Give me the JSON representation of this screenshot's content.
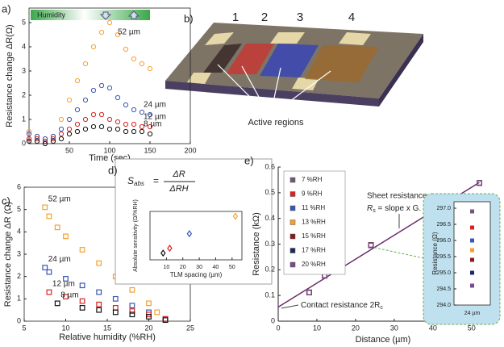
{
  "chart_data": [
    {
      "type": "scatter",
      "panel": "a)",
      "xlabel": "Time (sec)",
      "ylabel": "Resistance change ΔR(Ω)",
      "marker": "circle",
      "frame": true,
      "humidity_bar": "Humidity",
      "x": [
        0,
        10,
        20,
        30,
        40,
        50,
        60,
        70,
        80,
        90,
        100,
        110,
        120,
        130,
        140,
        150
      ],
      "series": [
        {
          "name": "52 µm",
          "color": "#f5a030",
          "values": [
            0.5,
            0.3,
            0.2,
            0.3,
            1.0,
            1.8,
            2.6,
            3.3,
            4.0,
            4.6,
            5.0,
            4.5,
            3.9,
            3.5,
            3.3,
            3.1
          ]
        },
        {
          "name": "24 µm",
          "color": "#3a56b0",
          "values": [
            0.4,
            0.3,
            0.2,
            0.3,
            0.6,
            1.0,
            1.4,
            1.8,
            2.2,
            2.4,
            2.3,
            1.9,
            1.6,
            1.4,
            1.3,
            1.2
          ]
        },
        {
          "name": "12 µm",
          "color": "#e02020",
          "values": [
            0.2,
            0.2,
            0.1,
            0.2,
            0.4,
            0.6,
            0.8,
            1.0,
            1.2,
            1.2,
            1.0,
            0.9,
            0.8,
            0.8,
            0.7,
            0.7
          ]
        },
        {
          "name": "8 µm",
          "color": "#111111",
          "values": [
            0.1,
            0.1,
            0.0,
            0.1,
            0.2,
            0.4,
            0.5,
            0.6,
            0.7,
            0.7,
            0.6,
            0.6,
            0.5,
            0.5,
            0.5,
            0.4
          ]
        }
      ],
      "xlim": [
        0,
        200
      ],
      "ylim": [
        0,
        5.6
      ],
      "xticks": [
        50,
        100,
        150,
        200
      ],
      "yticks": [
        0,
        1,
        2,
        3,
        4,
        5
      ]
    },
    {
      "type": "scatter",
      "panel": "c)",
      "xlabel": "Relative humidity (%RH)",
      "ylabel": "Resistance change ΔR (Ω)",
      "marker": "square",
      "frame": true,
      "series": [
        {
          "name": "52 µm",
          "color": "#f5a030",
          "x": [
            7.5,
            8,
            9,
            10,
            12,
            14,
            16,
            18,
            20,
            21,
            22
          ],
          "values": [
            5.1,
            4.7,
            4.2,
            3.8,
            3.2,
            2.6,
            2.0,
            1.4,
            0.8,
            0.4,
            0.1
          ]
        },
        {
          "name": "24 µm",
          "color": "#3a56b0",
          "x": [
            7.5,
            8,
            10,
            12,
            14,
            16,
            18,
            20,
            22
          ],
          "values": [
            2.4,
            2.2,
            1.9,
            1.6,
            1.3,
            1.0,
            0.7,
            0.4,
            0.1
          ]
        },
        {
          "name": "12 µm",
          "color": "#e02020",
          "x": [
            8,
            10,
            12,
            14,
            16,
            18,
            20,
            22
          ],
          "values": [
            1.3,
            1.1,
            0.9,
            0.75,
            0.6,
            0.45,
            0.3,
            0.1
          ]
        },
        {
          "name": "8 µm",
          "color": "#111111",
          "x": [
            9,
            12,
            14,
            16,
            18,
            20,
            22
          ],
          "values": [
            0.8,
            0.6,
            0.5,
            0.4,
            0.3,
            0.2,
            0.05
          ]
        }
      ],
      "xlim": [
        5,
        25
      ],
      "ylim": [
        0,
        6
      ],
      "xticks": [
        5,
        10,
        15,
        20,
        25
      ],
      "yticks": [
        0,
        1,
        2,
        3,
        4,
        5,
        6
      ]
    },
    {
      "type": "scatter",
      "panel": "d)",
      "xlabel": "TLM spacing (µm)",
      "ylabel": "Absolute sensitivity (Ω/%RH)",
      "marker": "diamond",
      "frame": true,
      "formula": {
        "lhs": "S",
        "lhs_sub": "abs",
        "eq": "=",
        "num": "ΔR",
        "den": "ΔRH"
      },
      "x": [
        8,
        12,
        24,
        52
      ],
      "values": [
        0.07,
        0.12,
        0.27,
        0.45
      ],
      "colors": [
        "#111111",
        "#e02020",
        "#3a56b0",
        "#f5a030"
      ],
      "xlim": [
        0,
        56
      ],
      "ylim": [
        0,
        0.5
      ],
      "xticks": [
        10,
        20,
        30,
        40,
        50
      ]
    },
    {
      "type": "scatter",
      "panel": "e)",
      "xlabel": "Distance (µm)",
      "ylabel": "Resistance (kΩ)",
      "marker": "square",
      "frame": false,
      "legend": "top-left",
      "fit": {
        "color": "#6b2c6b",
        "x": [
          0,
          52
        ],
        "values": [
          0.055,
          0.54
        ]
      },
      "sheet_label": "Sheet resistance",
      "slope_label": {
        "text": "R",
        "sub": "s",
        "rest": " = slope x G. width"
      },
      "contact_label": {
        "text": "Contact resistance 2R",
        "sub": "c"
      },
      "series": [
        {
          "name": "7 %RH",
          "color": "#6e5a78",
          "x": [
            8,
            12,
            24,
            52
          ],
          "values": [
            0.112,
            0.177,
            0.2969,
            0.538
          ]
        },
        {
          "name": "9 %RH",
          "color": "#e02020",
          "x": [
            8,
            12,
            24,
            52
          ],
          "values": [
            0.112,
            0.177,
            0.2964,
            0.538
          ]
        },
        {
          "name": "11 %RH",
          "color": "#3a56b0",
          "x": [
            8,
            12,
            24,
            52
          ],
          "values": [
            0.112,
            0.177,
            0.296,
            0.538
          ]
        },
        {
          "name": "13 %RH",
          "color": "#f5a030",
          "x": [
            8,
            12,
            24,
            52
          ],
          "values": [
            0.112,
            0.177,
            0.2957,
            0.538
          ]
        },
        {
          "name": "15 %RH",
          "color": "#8b1a1a",
          "x": [
            8,
            12,
            24,
            52
          ],
          "values": [
            0.112,
            0.177,
            0.2954,
            0.538
          ]
        },
        {
          "name": "17 %RH",
          "color": "#1a2a60",
          "x": [
            8,
            12,
            24,
            52
          ],
          "values": [
            0.112,
            0.177,
            0.295,
            0.538
          ]
        },
        {
          "name": "20 %RH",
          "color": "#7a4a8a",
          "x": [
            8,
            12,
            24,
            52
          ],
          "values": [
            0.112,
            0.177,
            0.2946,
            0.538
          ]
        }
      ],
      "xlim": [
        0,
        54
      ],
      "ylim": [
        0,
        0.6
      ],
      "xticks": [
        0,
        10,
        20,
        30,
        40,
        50
      ],
      "yticks": [
        0,
        0.1,
        0.2,
        0.3,
        0.4,
        0.5,
        0.6
      ]
    },
    {
      "type": "strip",
      "ylabel": "Resistance (Ω)",
      "categories": [
        "24 µm"
      ],
      "values": [
        296.9,
        296.4,
        296.0,
        295.7,
        295.4,
        295.0,
        294.6
      ],
      "colors": [
        "#6e5a78",
        "#e02020",
        "#3a56b0",
        "#f5a030",
        "#8b1a1a",
        "#1a2a60",
        "#7a4a8a"
      ],
      "ylim": [
        294,
        297.2
      ],
      "yticks": [
        {
          "value": 294,
          "label": "294.0"
        },
        {
          "value": 294.5,
          "label": "294.5"
        },
        {
          "value": 295,
          "label": "295.0"
        },
        {
          "value": 295.5,
          "label": "295.5"
        },
        {
          "value": 296,
          "label": "296.0"
        },
        {
          "value": 296.5,
          "label": "296.5"
        },
        {
          "value": 297,
          "label": "297.0"
        }
      ]
    }
  ],
  "diagram": {
    "panel": "b)",
    "numbers": [
      {
        "label": "1",
        "color": "#111111"
      },
      {
        "label": "2",
        "color": "#e02020"
      },
      {
        "label": "3",
        "color": "#2a3fa0"
      },
      {
        "label": "4",
        "color": "#f5a030"
      }
    ],
    "annotation": "Active regions"
  }
}
